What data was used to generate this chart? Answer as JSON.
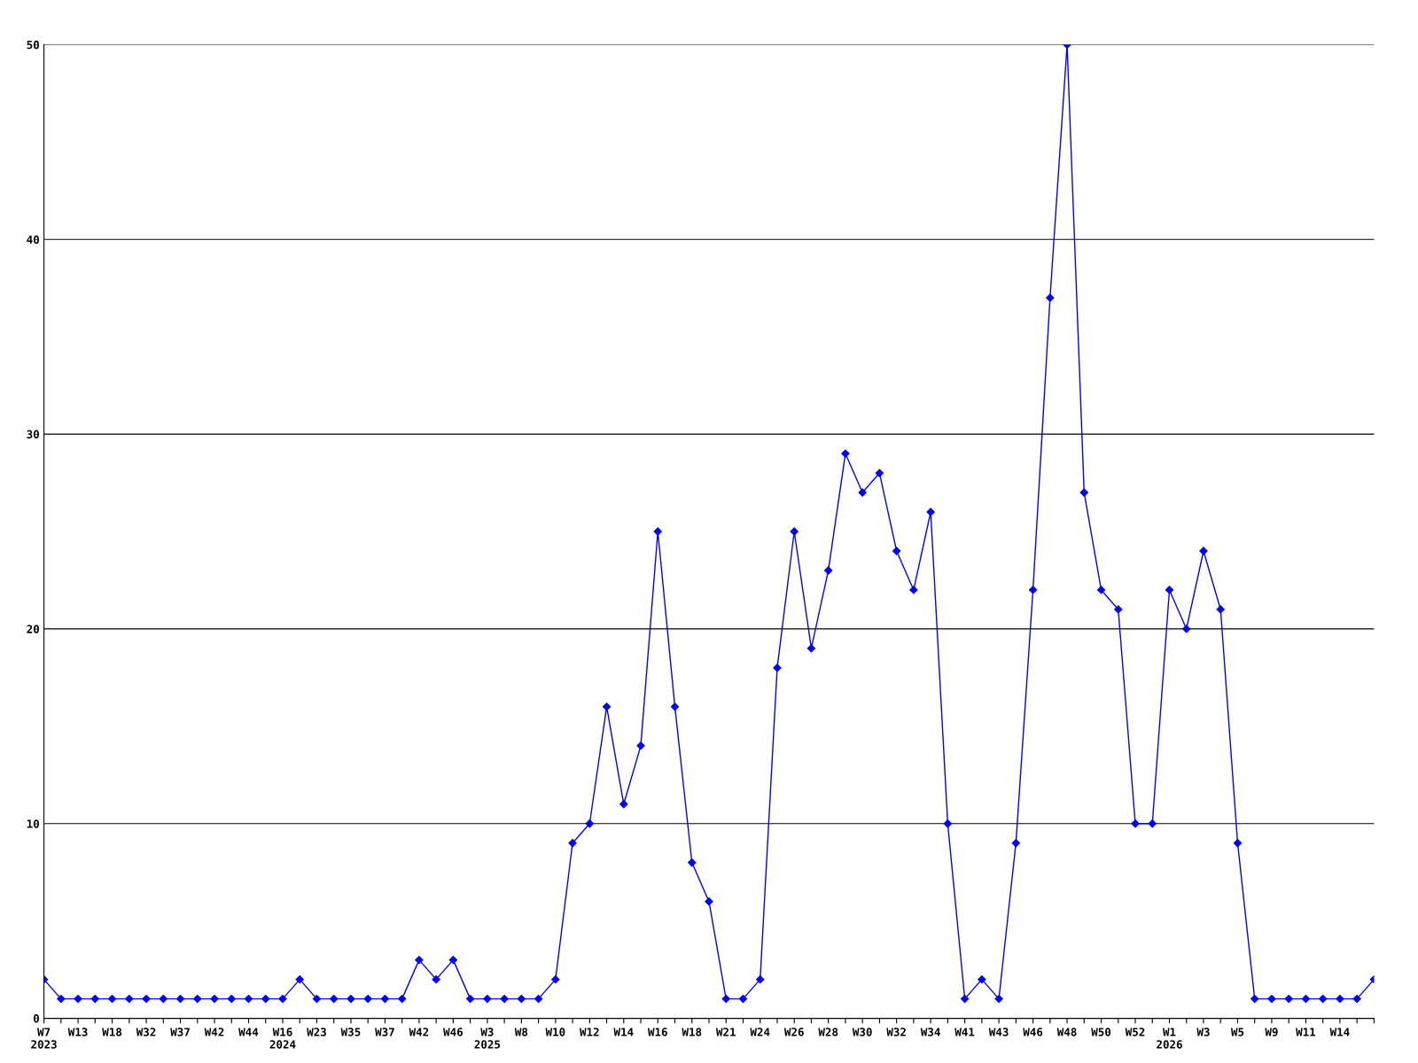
{
  "chart_data": {
    "type": "line",
    "categories": [
      "W7\n2023",
      null,
      "W13",
      null,
      "W18",
      null,
      "W32",
      null,
      "W37",
      null,
      "W42",
      null,
      "W44",
      null,
      "W16\n2024",
      null,
      "W23",
      null,
      "W35",
      null,
      "W37",
      null,
      "W42",
      null,
      "W46",
      null,
      "W3\n2025",
      null,
      "W8",
      null,
      "W10",
      null,
      "W12",
      null,
      "W14",
      null,
      "W16",
      null,
      "W18",
      null,
      "W21",
      null,
      "W24",
      null,
      "W26",
      null,
      "W28",
      null,
      "W30",
      null,
      "W32",
      null,
      "W34",
      null,
      "W41",
      null,
      "W43",
      null,
      "W46",
      null,
      "W48",
      null,
      "W50",
      null,
      "W52",
      null,
      "W1\n2026",
      null,
      "W3",
      null,
      "W5",
      null,
      "W9",
      null,
      "W11",
      null,
      "W14",
      null,
      null
    ],
    "series": [
      {
        "color": "#0000ff",
        "values": [
          2,
          1,
          1,
          1,
          1,
          1,
          1,
          1,
          1,
          1,
          1,
          1,
          1,
          1,
          1,
          2,
          1,
          1,
          1,
          1,
          1,
          1,
          3,
          2,
          3,
          1,
          1,
          1,
          1,
          1,
          2,
          9,
          10,
          16,
          11,
          14,
          25,
          16,
          8,
          6,
          1,
          1,
          2,
          18,
          25,
          19,
          23,
          29,
          27,
          28,
          24,
          22,
          26,
          10,
          1,
          2,
          1,
          9,
          22,
          37,
          50,
          27,
          22,
          21,
          10,
          10,
          22,
          20,
          24,
          21,
          9,
          1,
          1,
          1,
          1,
          1,
          1,
          1,
          2
        ]
      }
    ],
    "ylim": [
      0,
      50
    ],
    "yticks": [
      0,
      10,
      20,
      30,
      40,
      50
    ],
    "grid": "y",
    "marker": "diamond",
    "line_style": "solid"
  }
}
